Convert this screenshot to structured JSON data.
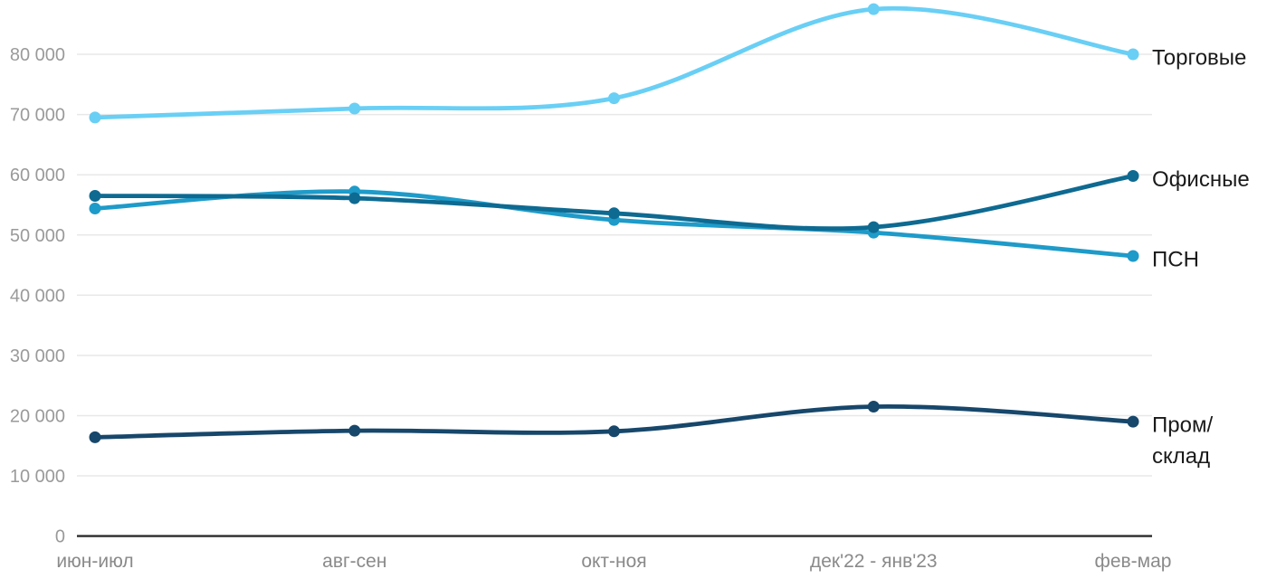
{
  "chart_data": {
    "type": "line",
    "title": "",
    "xlabel": "",
    "ylabel": "",
    "categories": [
      "июн-июл",
      "авг-сен",
      "окт-ноя",
      "дек'22 - янв'23",
      "фев-мар"
    ],
    "series": [
      {
        "name": "Торговые",
        "label_lines": [
          "Торговые"
        ],
        "color": "#69CFF5",
        "values": [
          69500,
          71000,
          72700,
          87500,
          80000
        ]
      },
      {
        "name": "Офисные",
        "label_lines": [
          "Офисные"
        ],
        "color": "#0E6A91",
        "values": [
          56500,
          56100,
          53600,
          51300,
          59800
        ]
      },
      {
        "name": "ПСН",
        "label_lines": [
          "ПСН"
        ],
        "color": "#1E9BC9",
        "values": [
          54400,
          57200,
          52500,
          50400,
          46500
        ]
      },
      {
        "name": "Пром/склад",
        "label_lines": [
          "Пром/",
          "склад"
        ],
        "color": "#17476B",
        "values": [
          16400,
          17500,
          17400,
          21500,
          19000
        ]
      }
    ],
    "yticks": [
      {
        "value": 0,
        "label": "0"
      },
      {
        "value": 10000,
        "label": "10 000"
      },
      {
        "value": 20000,
        "label": "20 000"
      },
      {
        "value": 30000,
        "label": "30 000"
      },
      {
        "value": 40000,
        "label": "40 000"
      },
      {
        "value": 50000,
        "label": "50 000"
      },
      {
        "value": 60000,
        "label": "60 000"
      },
      {
        "value": 70000,
        "label": "70 000"
      },
      {
        "value": 80000,
        "label": "80 000"
      }
    ],
    "ylim": [
      0,
      90000
    ],
    "grid": "horizontal",
    "legend_position": "right-line-end",
    "colors": {
      "background": "#ffffff",
      "gridline": "#e8e8e8",
      "axis_line": "#2a2a2a",
      "ytick_text": "#9a9a9a",
      "xtick_text": "#8a8a8a",
      "series_label_text": "#1a1a1a"
    }
  }
}
